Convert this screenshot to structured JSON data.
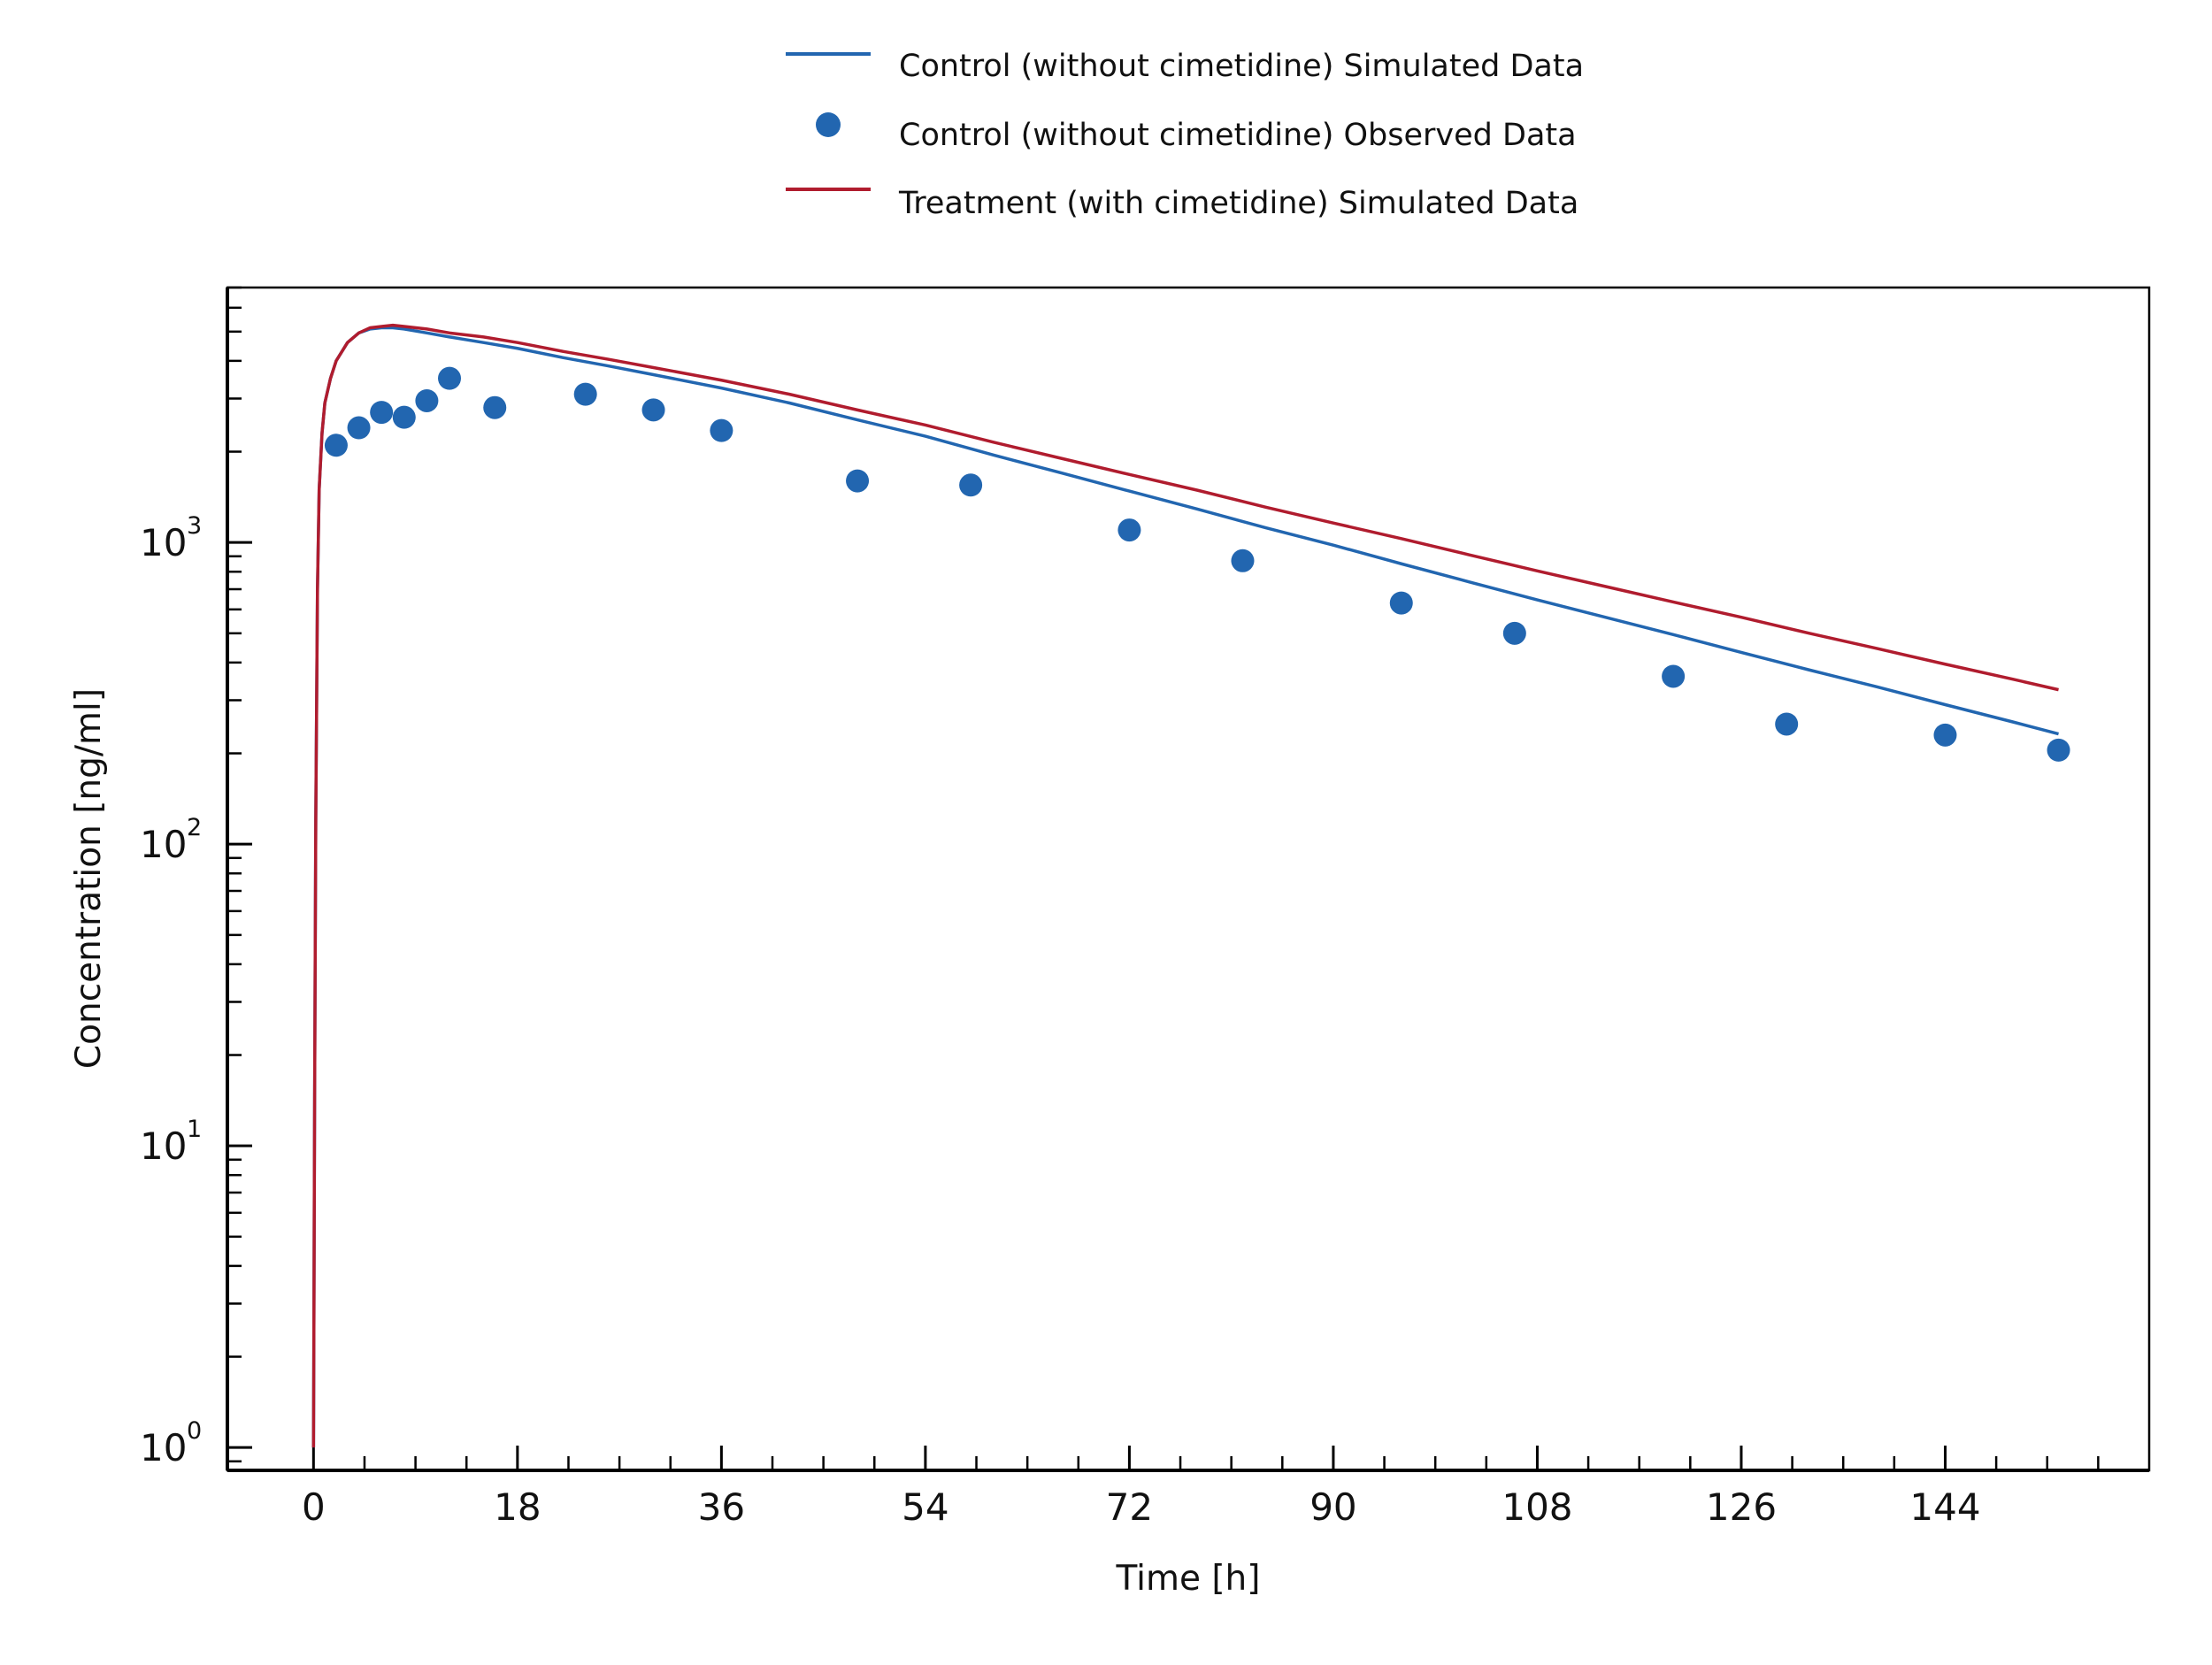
{
  "chart_data": {
    "type": "line",
    "title": "",
    "xlabel": "Time [h]",
    "ylabel": "Concentration [ng/ml]",
    "xlim": [
      -7.6,
      162
    ],
    "ylim": [
      0.84,
      7000
    ],
    "yscale": "log",
    "grid": false,
    "legend_position": "top-center",
    "xticks": [
      0,
      18,
      36,
      54,
      72,
      90,
      108,
      126,
      144
    ],
    "xtick_labels": [
      "0",
      "18",
      "36",
      "54",
      "72",
      "90",
      "108",
      "126",
      "144"
    ],
    "yticks": [
      {
        "value": 1,
        "base": "10",
        "exp": "0"
      },
      {
        "value": 10,
        "base": "10",
        "exp": "1"
      },
      {
        "value": 100,
        "base": "10",
        "exp": "2"
      },
      {
        "value": 1000,
        "base": "10",
        "exp": "3"
      }
    ],
    "series": [
      {
        "name": "Control (without cimetidine) Simulated Data",
        "kind": "line",
        "color": "#2266b0",
        "x": [
          0,
          0.1,
          0.2,
          0.35,
          0.5,
          0.75,
          1,
          1.5,
          2,
          3,
          4,
          5,
          6,
          7,
          8,
          10,
          12,
          15,
          18,
          22,
          26,
          30,
          36,
          42,
          48,
          54,
          60,
          66,
          72,
          78,
          84,
          90,
          96,
          102,
          108,
          114,
          120,
          126,
          132,
          138,
          144,
          150,
          154
        ],
        "y": [
          1,
          15,
          120,
          700,
          1500,
          2300,
          2900,
          3500,
          4000,
          4600,
          4950,
          5100,
          5150,
          5150,
          5100,
          4950,
          4800,
          4600,
          4400,
          4100,
          3850,
          3600,
          3250,
          2900,
          2550,
          2250,
          1950,
          1700,
          1480,
          1290,
          1120,
          980,
          850,
          740,
          645,
          565,
          495,
          432,
          378,
          332,
          290,
          254,
          232
        ]
      },
      {
        "name": "Control (without cimetidine) Observed Data",
        "kind": "scatter",
        "color": "#2266b0",
        "x": [
          2,
          4,
          6,
          8,
          10,
          12,
          16,
          24,
          30,
          36,
          48,
          58,
          72,
          82,
          96,
          106,
          120,
          130,
          144,
          154
        ],
        "y": [
          2100,
          2400,
          2700,
          2600,
          2950,
          3500,
          2800,
          3100,
          2750,
          2350,
          1600,
          1550,
          1100,
          870,
          630,
          500,
          360,
          250,
          230,
          205
        ]
      },
      {
        "name": "Treatment (with cimetidine) Simulated Data",
        "kind": "line",
        "color": "#b01c2e",
        "x": [
          0,
          0.1,
          0.2,
          0.35,
          0.5,
          0.75,
          1,
          1.5,
          2,
          3,
          4,
          5,
          6,
          7,
          8,
          10,
          12,
          15,
          18,
          22,
          26,
          30,
          36,
          42,
          48,
          54,
          60,
          66,
          72,
          78,
          84,
          90,
          96,
          102,
          108,
          114,
          120,
          126,
          132,
          138,
          144,
          150,
          154
        ],
        "y": [
          1,
          15,
          120,
          700,
          1500,
          2300,
          2900,
          3500,
          4000,
          4600,
          4950,
          5150,
          5200,
          5250,
          5200,
          5100,
          4950,
          4800,
          4600,
          4300,
          4050,
          3800,
          3450,
          3100,
          2750,
          2450,
          2150,
          1900,
          1680,
          1490,
          1310,
          1160,
          1030,
          910,
          805,
          715,
          635,
          565,
          500,
          445,
          395,
          352,
          325
        ]
      }
    ]
  }
}
